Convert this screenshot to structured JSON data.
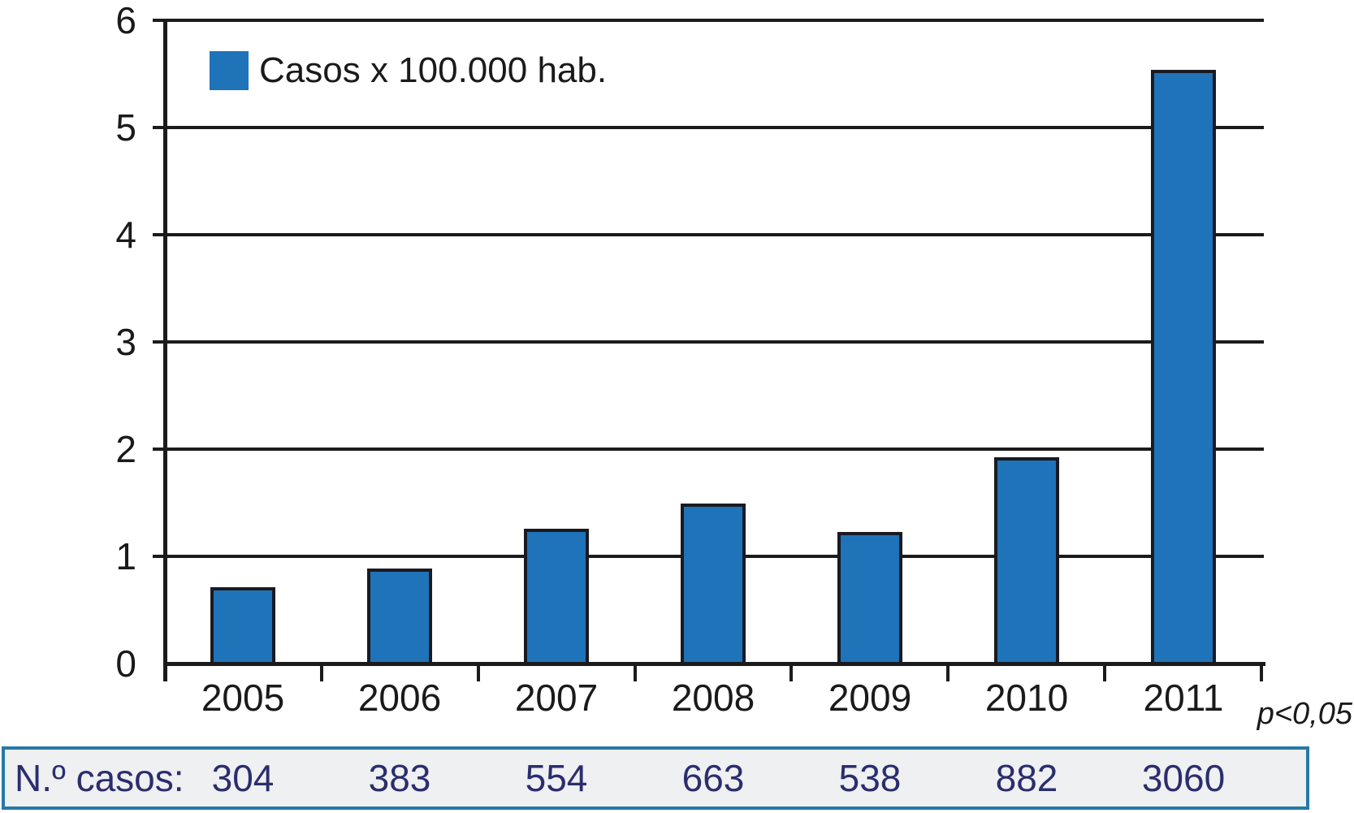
{
  "chart_data": {
    "type": "bar",
    "title": "",
    "legend": "Casos x 100.000 hab.",
    "legend_position": "top-left-inside",
    "categories": [
      "2005",
      "2006",
      "2007",
      "2008",
      "2009",
      "2010",
      "2011"
    ],
    "values": [
      0.7,
      0.87,
      1.24,
      1.48,
      1.21,
      1.91,
      5.52
    ],
    "xlabel": "",
    "ylabel": "",
    "ylim": [
      0,
      6
    ],
    "yticks": [
      "0",
      "1",
      "2",
      "3",
      "4",
      "5",
      "6"
    ],
    "grid": true,
    "annotation": "p<0,05",
    "counts_row": {
      "label": "N.º casos:",
      "values": [
        "304",
        "383",
        "554",
        "663",
        "538",
        "882",
        "3060"
      ]
    },
    "colors": {
      "bar_fill": "#1F73B9",
      "bar_border": "#1A1A22",
      "axis": "#1B1B1B",
      "text": "#1A1A1A",
      "table_border": "#2878A8",
      "table_background": "#EEF0F1",
      "table_text": "#2B2D6E"
    }
  }
}
